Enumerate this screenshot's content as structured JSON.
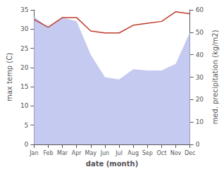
{
  "chart_data": {
    "type": "line",
    "xlabel": "date (month)",
    "ylabel": "max temp (C)",
    "y2label": "med. precipitation (kg/m2)",
    "categories": [
      "Jan",
      "Feb",
      "Mar",
      "Apr",
      "May",
      "Jun",
      "Jul",
      "Aug",
      "Sep",
      "Oct",
      "Nov",
      "Dec"
    ],
    "series": [
      {
        "type": "area",
        "axis": "y2",
        "color": "#c5caf0",
        "values": [
          57.0,
          52.0,
          56.5,
          55.0,
          40.0,
          30.0,
          29.0,
          33.5,
          33.0,
          33.0,
          36.0,
          50.0
        ]
      },
      {
        "type": "line",
        "color": "#c0392b",
        "values": [
          32.5,
          30.5,
          33.0,
          33.0,
          29.5,
          29.0,
          29.0,
          31.0,
          31.5,
          32.0,
          34.5,
          34.0
        ]
      }
    ],
    "ylim": [
      0,
      35
    ],
    "yticks": [
      0,
      5,
      10,
      15,
      20,
      25,
      30,
      35
    ],
    "y2lim": [
      0,
      60
    ],
    "y2ticks": [
      0,
      10,
      20,
      30,
      40,
      50,
      60
    ],
    "grid": false
  }
}
